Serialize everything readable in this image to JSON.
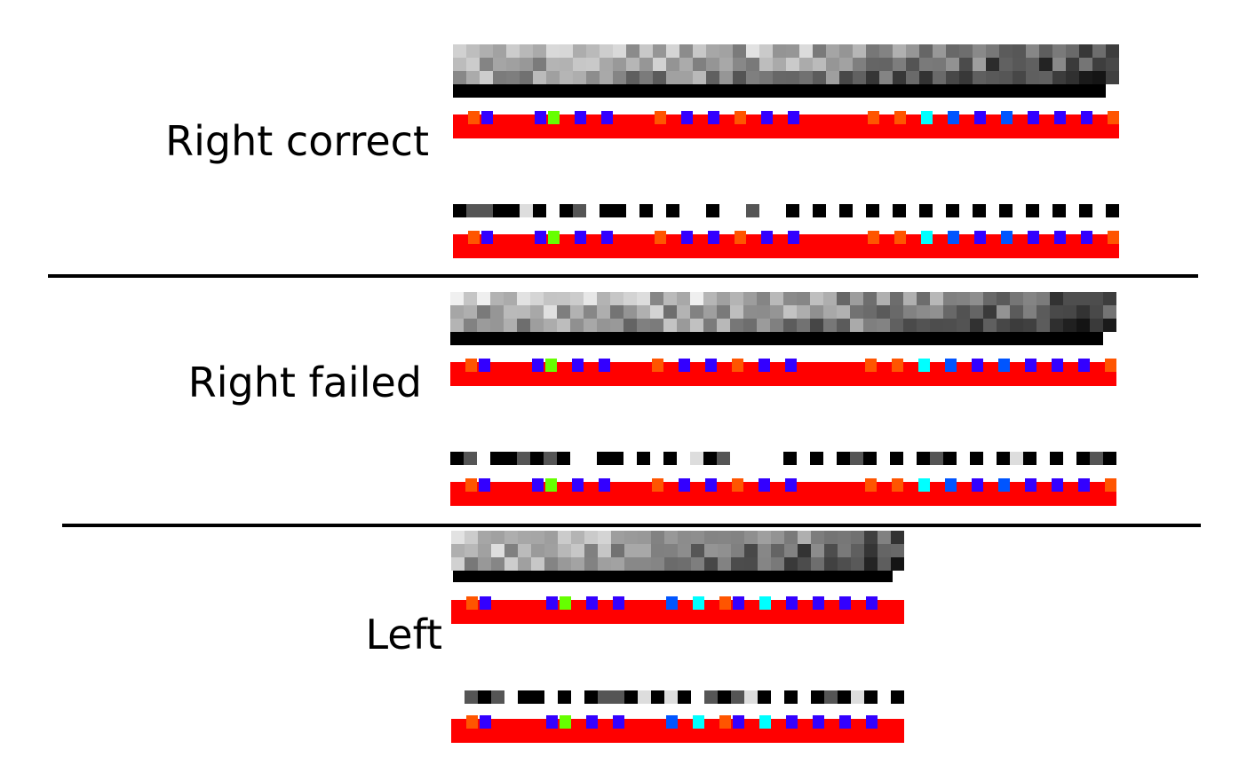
{
  "sections": [
    {
      "label": "Right correct"
    },
    {
      "label": "Right failed"
    },
    {
      "label": "Left"
    }
  ],
  "colors": {
    "background": "#ffffff",
    "red_strip": "#ff0000",
    "blue_cell": "#3300ff",
    "green_cell": "#66ff00",
    "cyan_cell": "#00ffff",
    "orange_cell": "#ff5500",
    "mid_blue_cell": "#0055ff",
    "dark_red_cell": "#ee2200"
  },
  "patterns": {
    "gray_grid_seed": 7,
    "binary_row_right": [
      1,
      0,
      0,
      1,
      1,
      0,
      1,
      0,
      1,
      0,
      0,
      1,
      1,
      0,
      1,
      0,
      1,
      0,
      0,
      1,
      0,
      0,
      0,
      0,
      0,
      1,
      0,
      1,
      0,
      1,
      0,
      1,
      0,
      1,
      0,
      1,
      0,
      1,
      0,
      1,
      0,
      1,
      0,
      1,
      0,
      1,
      0,
      1,
      0,
      1
    ],
    "color_row_right": [
      "R",
      "O",
      "B",
      "R",
      "R",
      "R",
      "B",
      "G",
      "R",
      "B",
      "R",
      "B",
      "R",
      "R",
      "R",
      "O",
      "R",
      "B",
      "R",
      "B",
      "R",
      "O",
      "R",
      "B",
      "R",
      "B",
      "R",
      "R",
      "R",
      "R",
      "R",
      "O",
      "R",
      "O",
      "R",
      "C",
      "R",
      "M",
      "R",
      "B",
      "R",
      "M",
      "R",
      "B",
      "R",
      "B",
      "R",
      "B",
      "R",
      "O"
    ],
    "binary_row_left": [
      0,
      1,
      0,
      0,
      1,
      1,
      0,
      1,
      0,
      1,
      0,
      0,
      1,
      0,
      1,
      0,
      1,
      0,
      0,
      1,
      0,
      0,
      1,
      0,
      1,
      0,
      1,
      0,
      1,
      0,
      1,
      0,
      1,
      0
    ],
    "color_row_left": [
      "R",
      "O",
      "B",
      "R",
      "R",
      "R",
      "R",
      "B",
      "G",
      "R",
      "B",
      "R",
      "B",
      "R",
      "R",
      "R",
      "M",
      "R",
      "C",
      "R",
      "O",
      "B",
      "R",
      "C",
      "R",
      "B",
      "R",
      "B",
      "R",
      "B",
      "R",
      "B",
      "R",
      "R"
    ]
  }
}
